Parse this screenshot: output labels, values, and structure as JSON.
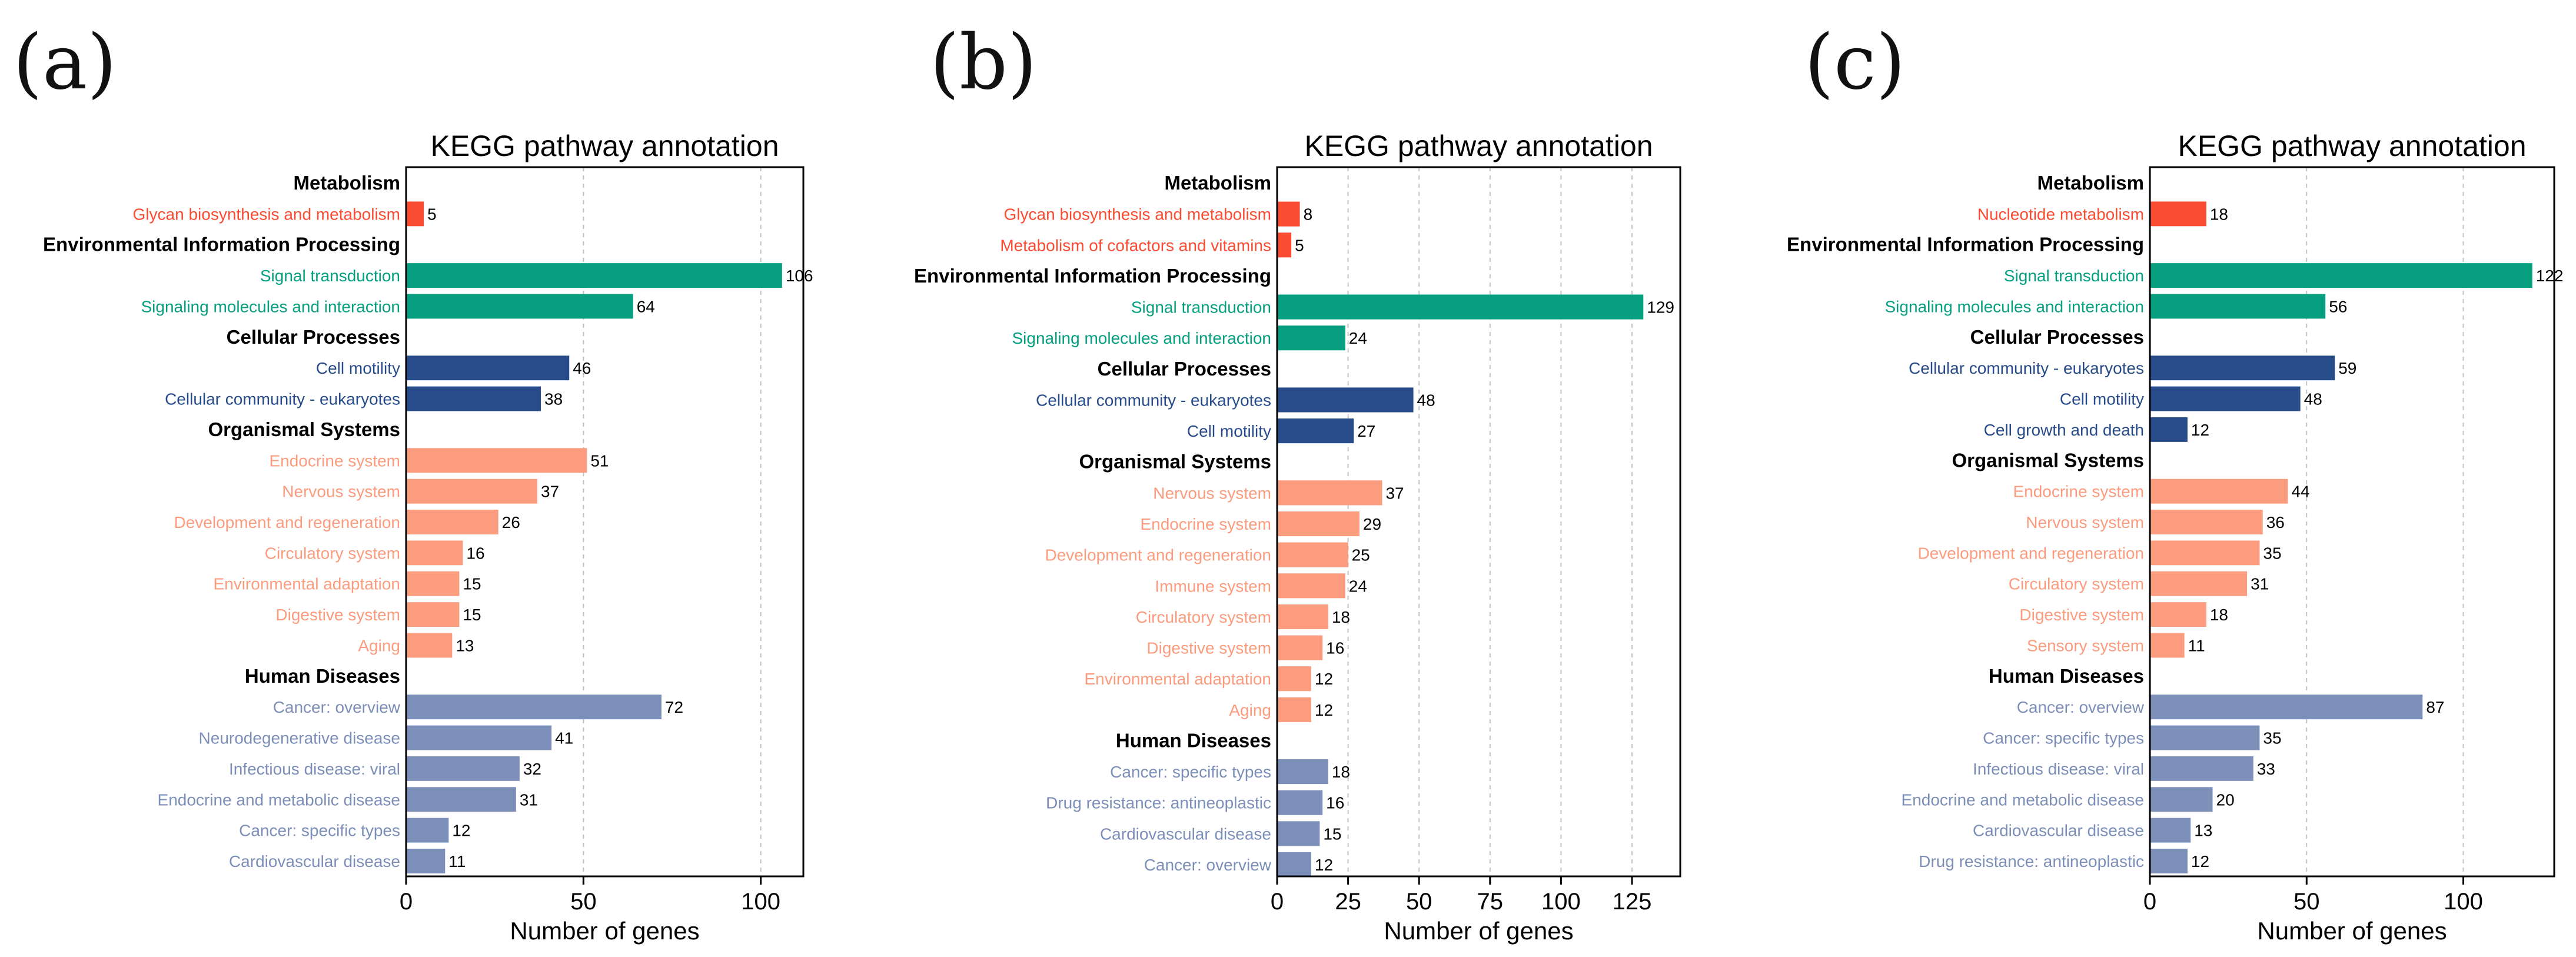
{
  "colors": {
    "Metabolism": "#fa4b33",
    "Environmental Information Processing": "#06a081",
    "Cellular Processes": "#284c89",
    "Organismal Systems": "#fb9c7f",
    "Human Diseases": "#7c8fb8"
  },
  "chart_data": [
    {
      "panel": "(a)",
      "type": "bar",
      "orientation": "horizontal",
      "title": "KEGG pathway annotation",
      "xlabel": "Number of genes",
      "xlim": [
        0,
        112
      ],
      "xticks": [
        0,
        50,
        100
      ],
      "grid": true,
      "groups": [
        {
          "name": "Metabolism",
          "items": [
            {
              "label": "Glycan biosynthesis and metabolism",
              "value": 5
            }
          ]
        },
        {
          "name": "Environmental Information Processing",
          "items": [
            {
              "label": "Signal transduction",
              "value": 106
            },
            {
              "label": "Signaling molecules and interaction",
              "value": 64
            }
          ]
        },
        {
          "name": "Cellular Processes",
          "items": [
            {
              "label": "Cell motility",
              "value": 46
            },
            {
              "label": "Cellular community - eukaryotes",
              "value": 38
            }
          ]
        },
        {
          "name": "Organismal Systems",
          "items": [
            {
              "label": "Endocrine system",
              "value": 51
            },
            {
              "label": "Nervous system",
              "value": 37
            },
            {
              "label": "Development and regeneration",
              "value": 26
            },
            {
              "label": "Circulatory system",
              "value": 16
            },
            {
              "label": "Environmental adaptation",
              "value": 15
            },
            {
              "label": "Digestive system",
              "value": 15
            },
            {
              "label": "Aging",
              "value": 13
            }
          ]
        },
        {
          "name": "Human Diseases",
          "items": [
            {
              "label": "Cancer: overview",
              "value": 72
            },
            {
              "label": "Neurodegenerative disease",
              "value": 41
            },
            {
              "label": "Infectious disease: viral",
              "value": 32
            },
            {
              "label": "Endocrine and metabolic disease",
              "value": 31
            },
            {
              "label": "Cancer: specific types",
              "value": 12
            },
            {
              "label": "Cardiovascular disease",
              "value": 11
            }
          ]
        }
      ]
    },
    {
      "panel": "(b)",
      "type": "bar",
      "orientation": "horizontal",
      "title": "KEGG pathway annotation",
      "xlabel": "Number of genes",
      "xlim": [
        0,
        142
      ],
      "xticks": [
        0,
        25,
        50,
        75,
        100,
        125
      ],
      "grid": true,
      "groups": [
        {
          "name": "Metabolism",
          "items": [
            {
              "label": "Glycan biosynthesis and metabolism",
              "value": 8
            },
            {
              "label": "Metabolism of cofactors and vitamins",
              "value": 5
            }
          ]
        },
        {
          "name": "Environmental Information Processing",
          "items": [
            {
              "label": "Signal transduction",
              "value": 129
            },
            {
              "label": "Signaling molecules and interaction",
              "value": 24
            }
          ]
        },
        {
          "name": "Cellular Processes",
          "items": [
            {
              "label": "Cellular community - eukaryotes",
              "value": 48
            },
            {
              "label": "Cell motility",
              "value": 27
            }
          ]
        },
        {
          "name": "Organismal Systems",
          "items": [
            {
              "label": "Nervous system",
              "value": 37
            },
            {
              "label": "Endocrine system",
              "value": 29
            },
            {
              "label": "Development and regeneration",
              "value": 25
            },
            {
              "label": "Immune system",
              "value": 24
            },
            {
              "label": "Circulatory system",
              "value": 18
            },
            {
              "label": "Digestive system",
              "value": 16
            },
            {
              "label": "Environmental adaptation",
              "value": 12
            },
            {
              "label": "Aging",
              "value": 12
            }
          ]
        },
        {
          "name": "Human Diseases",
          "items": [
            {
              "label": "Cancer: specific types",
              "value": 18
            },
            {
              "label": "Drug resistance: antineoplastic",
              "value": 16
            },
            {
              "label": "Cardiovascular disease",
              "value": 15
            },
            {
              "label": "Cancer: overview",
              "value": 12
            }
          ]
        }
      ]
    },
    {
      "panel": "(c)",
      "type": "bar",
      "orientation": "horizontal",
      "title": "KEGG pathway annotation",
      "xlabel": "Number of genes",
      "xlim": [
        0,
        129
      ],
      "xticks": [
        0,
        50,
        100
      ],
      "grid": true,
      "groups": [
        {
          "name": "Metabolism",
          "items": [
            {
              "label": "Nucleotide metabolism",
              "value": 18
            }
          ]
        },
        {
          "name": "Environmental Information Processing",
          "items": [
            {
              "label": "Signal transduction",
              "value": 122
            },
            {
              "label": "Signaling molecules and interaction",
              "value": 56
            }
          ]
        },
        {
          "name": "Cellular Processes",
          "items": [
            {
              "label": "Cellular community - eukaryotes",
              "value": 59
            },
            {
              "label": "Cell motility",
              "value": 48
            },
            {
              "label": "Cell growth and death",
              "value": 12
            }
          ]
        },
        {
          "name": "Organismal Systems",
          "items": [
            {
              "label": "Endocrine system",
              "value": 44
            },
            {
              "label": "Nervous system",
              "value": 36
            },
            {
              "label": "Development and regeneration",
              "value": 35
            },
            {
              "label": "Circulatory system",
              "value": 31
            },
            {
              "label": "Digestive system",
              "value": 18
            },
            {
              "label": "Sensory system",
              "value": 11
            }
          ]
        },
        {
          "name": "Human Diseases",
          "items": [
            {
              "label": "Cancer: overview",
              "value": 87
            },
            {
              "label": "Cancer: specific types",
              "value": 35
            },
            {
              "label": "Infectious disease: viral",
              "value": 33
            },
            {
              "label": "Endocrine and metabolic disease",
              "value": 20
            },
            {
              "label": "Cardiovascular disease",
              "value": 13
            },
            {
              "label": "Drug resistance: antineoplastic",
              "value": 12
            }
          ]
        }
      ]
    }
  ]
}
